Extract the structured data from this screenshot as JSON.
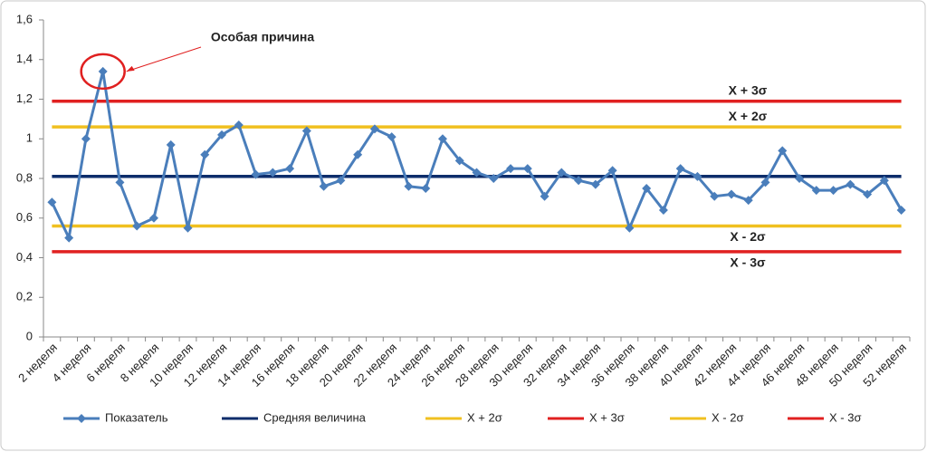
{
  "chart_data": {
    "type": "line",
    "categories": [
      "2 неделя",
      null,
      "4 неделя",
      null,
      "6 неделя",
      null,
      "8 неделя",
      null,
      "10 неделя",
      null,
      "12 неделя",
      null,
      "14 неделя",
      null,
      "16 неделя",
      null,
      "18 неделя",
      null,
      "20 неделя",
      null,
      "22 неделя",
      null,
      "24 неделя",
      null,
      "26 неделя",
      null,
      "28 неделя",
      null,
      "30 неделя",
      null,
      "32 неделя",
      null,
      "34 неделя",
      null,
      "36 неделя",
      null,
      "38 неделя",
      null,
      "40 неделя",
      null,
      "42 неделя",
      null,
      "44 неделя",
      null,
      "46 неделя",
      null,
      "48 неделя",
      null,
      "50 неделя",
      null,
      "52 неделя"
    ],
    "series": [
      {
        "name": "Показатель",
        "color": "#4a7ebb",
        "marker": "diamond",
        "values": [
          0.68,
          0.5,
          1.0,
          1.34,
          0.78,
          0.56,
          0.6,
          0.97,
          0.55,
          0.92,
          1.02,
          1.07,
          0.82,
          0.83,
          0.85,
          1.04,
          0.76,
          0.79,
          0.92,
          1.05,
          1.01,
          0.76,
          0.75,
          1.0,
          0.89,
          0.83,
          0.8,
          0.85,
          0.85,
          0.71,
          0.83,
          0.79,
          0.77,
          0.84,
          0.55,
          0.75,
          0.64,
          0.85,
          0.81,
          0.71,
          0.72,
          0.69,
          0.78,
          0.94,
          0.8,
          0.74,
          0.74,
          0.77,
          0.72,
          0.79,
          0.64
        ]
      },
      {
        "name": "Средняя величина",
        "color": "#0d2d6b",
        "values": [
          0.81,
          0.81,
          0.81,
          0.81,
          0.81,
          0.81,
          0.81,
          0.81,
          0.81,
          0.81,
          0.81,
          0.81,
          0.81,
          0.81,
          0.81,
          0.81,
          0.81,
          0.81,
          0.81,
          0.81,
          0.81,
          0.81,
          0.81,
          0.81,
          0.81,
          0.81,
          0.81,
          0.81,
          0.81,
          0.81,
          0.81,
          0.81,
          0.81,
          0.81,
          0.81,
          0.81,
          0.81,
          0.81,
          0.81,
          0.81,
          0.81,
          0.81,
          0.81,
          0.81,
          0.81,
          0.81,
          0.81,
          0.81,
          0.81,
          0.81,
          0.81
        ]
      },
      {
        "name": "X + 2σ",
        "color": "#f0c020",
        "label_side": "above",
        "values": [
          1.06,
          1.06,
          1.06,
          1.06,
          1.06,
          1.06,
          1.06,
          1.06,
          1.06,
          1.06,
          1.06,
          1.06,
          1.06,
          1.06,
          1.06,
          1.06,
          1.06,
          1.06,
          1.06,
          1.06,
          1.06,
          1.06,
          1.06,
          1.06,
          1.06,
          1.06,
          1.06,
          1.06,
          1.06,
          1.06,
          1.06,
          1.06,
          1.06,
          1.06,
          1.06,
          1.06,
          1.06,
          1.06,
          1.06,
          1.06,
          1.06,
          1.06,
          1.06,
          1.06,
          1.06,
          1.06,
          1.06,
          1.06,
          1.06,
          1.06,
          1.06
        ]
      },
      {
        "name": "X + 3σ",
        "color": "#e02020",
        "label_side": "above",
        "values": [
          1.19,
          1.19,
          1.19,
          1.19,
          1.19,
          1.19,
          1.19,
          1.19,
          1.19,
          1.19,
          1.19,
          1.19,
          1.19,
          1.19,
          1.19,
          1.19,
          1.19,
          1.19,
          1.19,
          1.19,
          1.19,
          1.19,
          1.19,
          1.19,
          1.19,
          1.19,
          1.19,
          1.19,
          1.19,
          1.19,
          1.19,
          1.19,
          1.19,
          1.19,
          1.19,
          1.19,
          1.19,
          1.19,
          1.19,
          1.19,
          1.19,
          1.19,
          1.19,
          1.19,
          1.19,
          1.19,
          1.19,
          1.19,
          1.19,
          1.19,
          1.19
        ]
      },
      {
        "name": "X - 2σ",
        "color": "#f0c020",
        "label_side": "below",
        "values": [
          0.56,
          0.56,
          0.56,
          0.56,
          0.56,
          0.56,
          0.56,
          0.56,
          0.56,
          0.56,
          0.56,
          0.56,
          0.56,
          0.56,
          0.56,
          0.56,
          0.56,
          0.56,
          0.56,
          0.56,
          0.56,
          0.56,
          0.56,
          0.56,
          0.56,
          0.56,
          0.56,
          0.56,
          0.56,
          0.56,
          0.56,
          0.56,
          0.56,
          0.56,
          0.56,
          0.56,
          0.56,
          0.56,
          0.56,
          0.56,
          0.56,
          0.56,
          0.56,
          0.56,
          0.56,
          0.56,
          0.56,
          0.56,
          0.56,
          0.56,
          0.56
        ]
      },
      {
        "name": "X - 3σ",
        "color": "#e02020",
        "label_side": "below",
        "values": [
          0.43,
          0.43,
          0.43,
          0.43,
          0.43,
          0.43,
          0.43,
          0.43,
          0.43,
          0.43,
          0.43,
          0.43,
          0.43,
          0.43,
          0.43,
          0.43,
          0.43,
          0.43,
          0.43,
          0.43,
          0.43,
          0.43,
          0.43,
          0.43,
          0.43,
          0.43,
          0.43,
          0.43,
          0.43,
          0.43,
          0.43,
          0.43,
          0.43,
          0.43,
          0.43,
          0.43,
          0.43,
          0.43,
          0.43,
          0.43,
          0.43,
          0.43,
          0.43,
          0.43,
          0.43,
          0.43,
          0.43,
          0.43,
          0.43,
          0.43,
          0.43
        ]
      }
    ],
    "annotation": "Особая причина",
    "ylim": [
      0,
      1.6
    ],
    "yticks": [
      0,
      {
        "value": 0.2,
        "label": "0,2"
      },
      {
        "value": 0.4,
        "label": "0,4"
      },
      {
        "value": 0.6,
        "label": "0,6"
      },
      {
        "value": 0.8,
        "label": "0,8"
      },
      1,
      {
        "value": 1.2,
        "label": "1,2"
      },
      {
        "value": 1.4,
        "label": "1,4"
      },
      {
        "value": 1.6,
        "label": "1,6"
      }
    ],
    "grid": false,
    "legend": "bottom"
  }
}
